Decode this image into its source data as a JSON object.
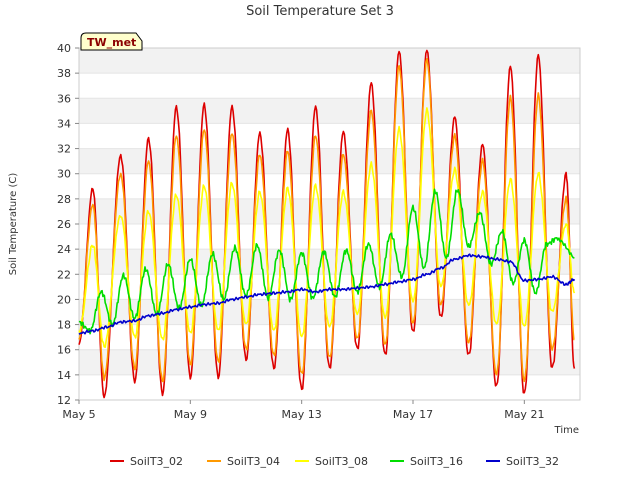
{
  "chart_data": {
    "type": "line",
    "title": "Soil Temperature Set 3",
    "xlabel": "Time",
    "ylabel": "Soil Temperature (C)",
    "badge": "TW_met",
    "x_ticks": [
      "May 5",
      "May 9",
      "May 13",
      "May 17",
      "May 21"
    ],
    "x_tick_days": [
      5,
      9,
      13,
      17,
      21
    ],
    "xlim_days": [
      5,
      23
    ],
    "ylim": [
      12,
      40
    ],
    "y_ticks": [
      12,
      14,
      16,
      18,
      20,
      22,
      24,
      26,
      28,
      30,
      32,
      34,
      36,
      38,
      40
    ],
    "grid": "horizontal alternating bands",
    "legend": "bottom",
    "series": [
      {
        "name": "SoilT3_02",
        "color": "#dd0000",
        "days": [
          5.0,
          5.5,
          5.9,
          6.5,
          7.0,
          7.5,
          8.0,
          8.5,
          9.0,
          9.5,
          10.0,
          10.5,
          11.0,
          11.5,
          12.0,
          12.5,
          13.0,
          13.5,
          14.0,
          14.5,
          15.0,
          15.5,
          16.0,
          16.5,
          17.0,
          17.5,
          18.0,
          18.5,
          19.0,
          19.5,
          20.0,
          20.5,
          21.0,
          21.5,
          22.0,
          22.5,
          22.8
        ],
        "values": [
          16.5,
          28.8,
          12.3,
          31.5,
          13.5,
          32.8,
          12.5,
          35.3,
          13.8,
          35.5,
          13.8,
          35.3,
          15.2,
          33.2,
          14.5,
          33.5,
          12.8,
          35.3,
          14.5,
          33.3,
          16.0,
          37.2,
          15.5,
          39.7,
          17.3,
          39.8,
          18.5,
          34.5,
          15.5,
          32.3,
          13.0,
          38.5,
          12.4,
          39.4,
          14.5,
          30.0,
          14.5
        ]
      },
      {
        "name": "SoilT3_04",
        "color": "#ff9900",
        "days": [
          5.0,
          5.5,
          5.9,
          6.5,
          7.0,
          7.5,
          8.0,
          8.5,
          9.0,
          9.5,
          10.0,
          10.5,
          11.0,
          11.5,
          12.0,
          12.5,
          13.0,
          13.5,
          14.0,
          14.5,
          15.0,
          15.5,
          16.0,
          16.5,
          17.0,
          17.5,
          18.0,
          18.5,
          19.0,
          19.5,
          20.0,
          20.5,
          21.0,
          21.5,
          22.0,
          22.5,
          22.8
        ],
        "values": [
          17.0,
          27.5,
          13.8,
          30.0,
          14.5,
          31.0,
          13.5,
          33.0,
          14.8,
          33.5,
          15.0,
          33.2,
          16.0,
          31.5,
          15.5,
          31.8,
          14.0,
          33.0,
          15.3,
          31.5,
          16.8,
          35.0,
          16.3,
          38.5,
          18.0,
          39.0,
          19.5,
          33.0,
          16.5,
          31.0,
          14.0,
          36.0,
          13.5,
          36.2,
          16.0,
          28.0,
          16.8
        ]
      },
      {
        "name": "SoilT3_08",
        "color": "#ffff00",
        "days": [
          5.0,
          5.5,
          5.9,
          6.5,
          7.0,
          7.5,
          8.0,
          8.5,
          9.0,
          9.5,
          10.0,
          10.5,
          11.0,
          11.5,
          12.0,
          12.5,
          13.0,
          13.5,
          14.0,
          14.5,
          15.0,
          15.5,
          16.0,
          16.5,
          17.0,
          17.5,
          18.0,
          18.5,
          19.0,
          19.5,
          20.0,
          20.5,
          21.0,
          21.5,
          22.0,
          22.5,
          22.8
        ],
        "values": [
          17.5,
          24.3,
          16.3,
          26.7,
          17.0,
          27.0,
          16.8,
          28.3,
          17.3,
          29.0,
          17.5,
          29.2,
          18.0,
          28.5,
          17.5,
          28.8,
          17.0,
          29.0,
          17.8,
          28.5,
          18.8,
          30.7,
          18.5,
          33.5,
          19.8,
          35.0,
          21.0,
          30.3,
          19.5,
          28.5,
          18.0,
          29.5,
          17.8,
          30.0,
          19.0,
          26.0,
          20.5
        ]
      },
      {
        "name": "SoilT3_16",
        "color": "#00dd00",
        "days": [
          5.0,
          5.4,
          5.8,
          6.2,
          6.6,
          7.0,
          7.4,
          7.8,
          8.2,
          8.6,
          9.0,
          9.4,
          9.8,
          10.2,
          10.6,
          11.0,
          11.4,
          11.8,
          12.2,
          12.6,
          13.0,
          13.4,
          13.8,
          14.2,
          14.6,
          15.0,
          15.4,
          15.8,
          16.2,
          16.6,
          17.0,
          17.4,
          17.8,
          18.2,
          18.6,
          19.0,
          19.4,
          19.8,
          20.2,
          20.6,
          21.0,
          21.4,
          21.8,
          22.2,
          22.8
        ],
        "values": [
          18.2,
          17.5,
          20.6,
          18.0,
          21.9,
          18.5,
          22.4,
          18.8,
          22.8,
          19.3,
          23.2,
          19.5,
          23.6,
          20.0,
          24.1,
          20.3,
          24.3,
          20.1,
          23.9,
          20.0,
          23.7,
          20.1,
          23.8,
          20.2,
          23.9,
          20.6,
          24.4,
          21.0,
          25.2,
          21.8,
          27.3,
          22.5,
          28.6,
          23.3,
          28.7,
          24.2,
          26.9,
          22.8,
          25.4,
          21.3,
          24.7,
          20.5,
          24.4,
          24.9,
          23.3
        ]
      },
      {
        "name": "SoilT3_32",
        "color": "#0000cc",
        "days": [
          5.0,
          5.5,
          6.0,
          6.5,
          7.0,
          7.5,
          8.0,
          8.5,
          9.0,
          9.5,
          10.0,
          10.5,
          11.0,
          11.5,
          12.0,
          12.5,
          13.0,
          13.5,
          14.0,
          14.5,
          15.0,
          15.5,
          16.0,
          16.5,
          17.0,
          17.5,
          18.0,
          18.5,
          19.0,
          19.5,
          20.0,
          20.5,
          21.0,
          21.5,
          22.0,
          22.5,
          22.8
        ],
        "values": [
          17.3,
          17.5,
          17.8,
          18.2,
          18.3,
          18.7,
          18.9,
          19.2,
          19.4,
          19.6,
          19.7,
          20.0,
          20.2,
          20.4,
          20.5,
          20.6,
          20.8,
          20.6,
          20.8,
          20.8,
          20.9,
          21.0,
          21.2,
          21.4,
          21.6,
          22.0,
          22.5,
          23.2,
          23.5,
          23.4,
          23.2,
          23.0,
          21.5,
          21.6,
          21.8,
          21.2,
          21.6
        ]
      }
    ]
  }
}
